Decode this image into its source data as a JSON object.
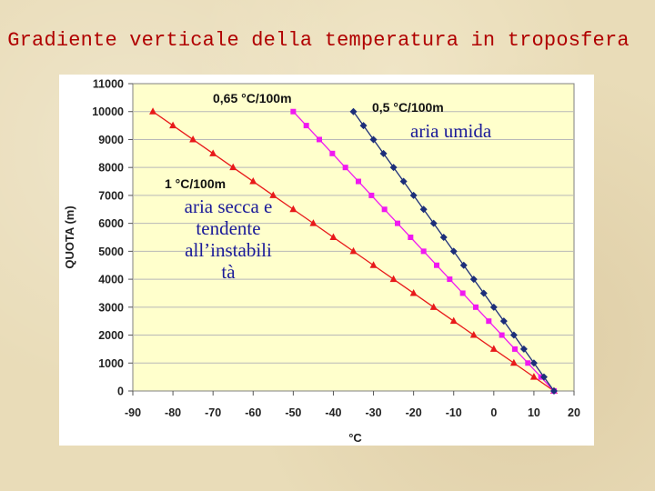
{
  "slide": {
    "title": "Gradiente verticale della temperatura in troposfera"
  },
  "annotations": {
    "lapse_065": "0,65 °C/100m",
    "lapse_05": "0,5 °C/100m",
    "humid_air": "aria umida",
    "lapse_1": "1 °C/100m",
    "dry_air": [
      "aria secca e",
      "tendente",
      "all’instabili",
      "tà"
    ]
  },
  "colors": {
    "plot_bg": "#ffffcc",
    "grid": "#b8b8b8",
    "series_red": "#e8191a",
    "series_magenta": "#f018f0",
    "series_navy": "#1c2e7a"
  },
  "chart_data": {
    "type": "line",
    "xlabel": "°C",
    "ylabel": "QUOTA (m)",
    "xlim": [
      -90,
      20
    ],
    "ylim": [
      0,
      11000
    ],
    "xticks": [
      -90,
      -80,
      -70,
      -60,
      -50,
      -40,
      -30,
      -20,
      -10,
      0,
      10,
      20
    ],
    "yticks": [
      0,
      1000,
      2000,
      3000,
      4000,
      5000,
      6000,
      7000,
      8000,
      9000,
      10000,
      11000
    ],
    "grid": "horizontal",
    "series": [
      {
        "marker": "triangle",
        "color": "#e8191a",
        "x": [
          15,
          10,
          5,
          0,
          -5,
          -10,
          -15,
          -20,
          -25,
          -30,
          -35,
          -40,
          -45,
          -50,
          -55,
          -60,
          -65,
          -70,
          -75,
          -80,
          -85
        ],
        "y": [
          0,
          500,
          1000,
          1500,
          2000,
          2500,
          3000,
          3500,
          4000,
          4500,
          5000,
          5500,
          6000,
          6500,
          7000,
          7500,
          8000,
          8500,
          9000,
          9500,
          10000
        ]
      },
      {
        "marker": "square",
        "color": "#f018f0",
        "x": [
          15,
          11.75,
          8.5,
          5.25,
          2,
          -1.25,
          -4.5,
          -7.75,
          -11,
          -14.25,
          -17.5,
          -20.75,
          -24,
          -27.25,
          -30.5,
          -33.75,
          -37,
          -40.25,
          -43.5,
          -46.75,
          -50
        ],
        "y": [
          0,
          500,
          1000,
          1500,
          2000,
          2500,
          3000,
          3500,
          4000,
          4500,
          5000,
          5500,
          6000,
          6500,
          7000,
          7500,
          8000,
          8500,
          9000,
          9500,
          10000
        ]
      },
      {
        "marker": "diamond",
        "color": "#1c2e7a",
        "x": [
          15,
          12.5,
          10,
          7.5,
          5,
          2.5,
          0,
          -2.5,
          -5,
          -7.5,
          -10,
          -12.5,
          -15,
          -17.5,
          -20,
          -22.5,
          -25,
          -27.5,
          -30,
          -32.5,
          -35
        ],
        "y": [
          0,
          500,
          1000,
          1500,
          2000,
          2500,
          3000,
          3500,
          4000,
          4500,
          5000,
          5500,
          6000,
          6500,
          7000,
          7500,
          8000,
          8500,
          9000,
          9500,
          10000
        ]
      }
    ]
  }
}
